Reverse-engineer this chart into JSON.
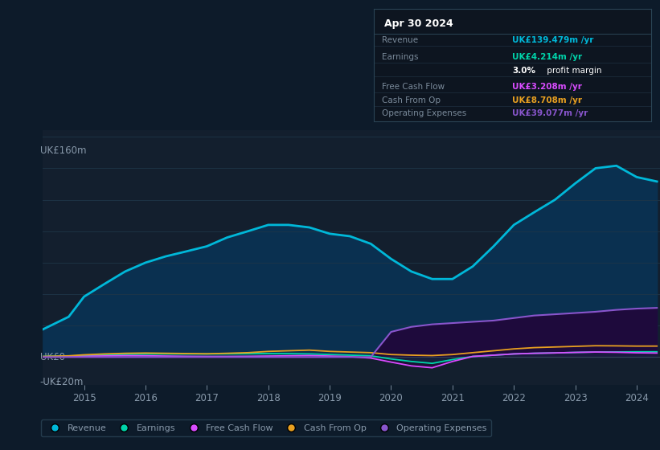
{
  "background_color": "#0d1b2a",
  "plot_bg_color": "#131f2e",
  "ylabel_top": "UK£160m",
  "ylabel_zero": "UK£0",
  "ylabel_neg": "-UK£20m",
  "ylim": [
    -22,
    180
  ],
  "years": [
    2014.33,
    2014.75,
    2015.0,
    2015.33,
    2015.67,
    2016.0,
    2016.33,
    2016.67,
    2017.0,
    2017.33,
    2017.67,
    2018.0,
    2018.33,
    2018.67,
    2019.0,
    2019.33,
    2019.67,
    2020.0,
    2020.33,
    2020.67,
    2021.0,
    2021.33,
    2021.67,
    2022.0,
    2022.33,
    2022.67,
    2023.0,
    2023.33,
    2023.67,
    2024.0,
    2024.33
  ],
  "revenue": [
    22,
    32,
    48,
    58,
    68,
    75,
    80,
    84,
    88,
    95,
    100,
    105,
    105,
    103,
    98,
    96,
    90,
    78,
    68,
    62,
    62,
    72,
    88,
    105,
    115,
    125,
    138,
    150,
    152,
    143,
    139.479
  ],
  "earnings": [
    0.5,
    0.8,
    1.2,
    1.8,
    2.2,
    2.4,
    2.5,
    2.5,
    2.5,
    2.6,
    2.7,
    2.8,
    2.7,
    2.5,
    2.0,
    1.5,
    1.0,
    -1.5,
    -3.5,
    -5.0,
    -2.0,
    0.5,
    1.5,
    2.5,
    3.0,
    3.3,
    3.7,
    4.0,
    4.1,
    4.2,
    4.214
  ],
  "free_cash_flow": [
    0.2,
    0.4,
    0.6,
    0.9,
    1.1,
    1.0,
    0.8,
    0.6,
    0.5,
    0.5,
    0.6,
    0.8,
    1.0,
    1.2,
    0.8,
    0.3,
    -0.8,
    -4.0,
    -7.0,
    -8.5,
    -3.5,
    0.5,
    1.5,
    2.5,
    3.0,
    3.3,
    3.7,
    4.0,
    3.8,
    3.4,
    3.208
  ],
  "cash_from_op": [
    0.5,
    1.0,
    1.8,
    2.5,
    3.0,
    3.2,
    3.0,
    2.8,
    2.6,
    3.0,
    3.5,
    4.5,
    5.0,
    5.5,
    4.5,
    4.0,
    3.5,
    2.0,
    1.5,
    1.2,
    2.0,
    3.5,
    5.0,
    6.5,
    7.5,
    8.0,
    8.5,
    9.0,
    8.9,
    8.7,
    8.708
  ],
  "operating_expenses": [
    0,
    0,
    0,
    0,
    0,
    0,
    0,
    0,
    0,
    0,
    0,
    0,
    0,
    0,
    0,
    0,
    0,
    20,
    24,
    26,
    27,
    28,
    29,
    31,
    33,
    34,
    35,
    36,
    37.5,
    38.5,
    39.077
  ],
  "revenue_color": "#00b8d9",
  "revenue_fill": "#0a3d5c",
  "earnings_color": "#00d4aa",
  "free_cash_flow_color": "#d94cff",
  "cash_from_op_color": "#e8a020",
  "operating_expenses_color": "#8855cc",
  "operating_expenses_fill": "#2a0a50",
  "grid_color": "#1e3548",
  "text_color": "#8899aa",
  "legend_items": [
    "Revenue",
    "Earnings",
    "Free Cash Flow",
    "Cash From Op",
    "Operating Expenses"
  ],
  "legend_colors": [
    "#00b8d9",
    "#00d4aa",
    "#d94cff",
    "#e8a020",
    "#8855cc"
  ],
  "info_title": "Apr 30 2024",
  "info_rows": [
    {
      "label": "Revenue",
      "value": "UK£139.479m /yr",
      "color": "#00b8d9"
    },
    {
      "label": "Earnings",
      "value": "UK£4.214m /yr",
      "color": "#00d4aa"
    },
    {
      "label": "",
      "value": "3.0% profit margin",
      "color": "#ffffff"
    },
    {
      "label": "Free Cash Flow",
      "value": "UK£3.208m /yr",
      "color": "#d94cff"
    },
    {
      "label": "Cash From Op",
      "value": "UK£8.708m /yr",
      "color": "#e8a020"
    },
    {
      "label": "Operating Expenses",
      "value": "UK£39.077m /yr",
      "color": "#8855cc"
    }
  ]
}
